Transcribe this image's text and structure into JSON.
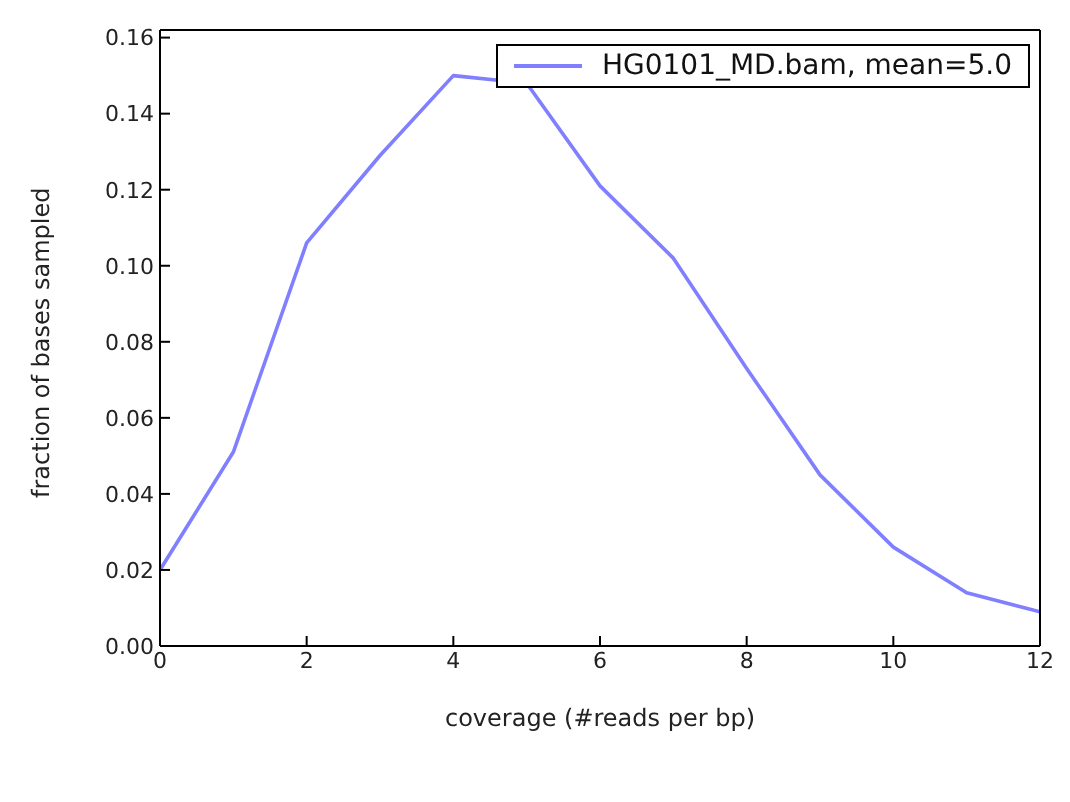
{
  "chart_data": {
    "type": "line",
    "xlabel": "coverage (#reads per bp)",
    "ylabel": "fraction of bases sampled",
    "x": [
      0,
      1,
      2,
      3,
      4,
      5,
      6,
      7,
      8,
      9,
      10,
      11,
      12
    ],
    "series": [
      {
        "name": "HG0101_MD.bam, mean=5.0",
        "color": "#7f7fff",
        "values": [
          0.02,
          0.051,
          0.106,
          0.129,
          0.15,
          0.148,
          0.121,
          0.102,
          0.073,
          0.045,
          0.026,
          0.014,
          0.009
        ]
      }
    ],
    "xlim": [
      0,
      12
    ],
    "xticks": [
      0,
      2,
      4,
      6,
      8,
      10,
      12
    ],
    "ylim": [
      0,
      0.162
    ],
    "yticks": [
      {
        "value": 0,
        "label": "0.00"
      },
      {
        "value": 0.02,
        "label": "0.02"
      },
      {
        "value": 0.04,
        "label": "0.04"
      },
      {
        "value": 0.06,
        "label": "0.06"
      },
      {
        "value": 0.08,
        "label": "0.08"
      },
      {
        "value": 0.1,
        "label": "0.10"
      },
      {
        "value": 0.12,
        "label": "0.12"
      },
      {
        "value": 0.14,
        "label": "0.14"
      },
      {
        "value": 0.16,
        "label": "0.16"
      }
    ],
    "legend": "top right",
    "grid": false,
    "marker": "none",
    "line_style": "solid"
  }
}
